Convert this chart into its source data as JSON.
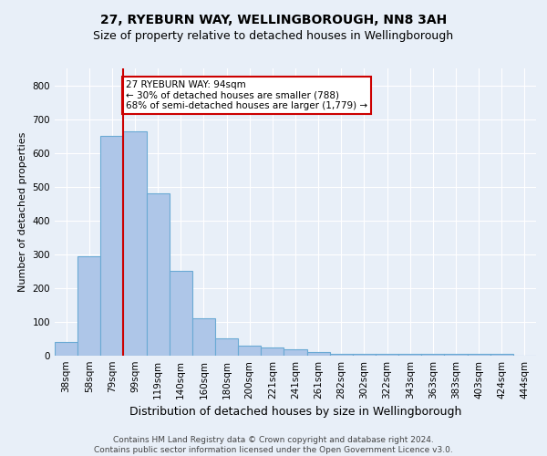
{
  "title1": "27, RYEBURN WAY, WELLINGBOROUGH, NN8 3AH",
  "title2": "Size of property relative to detached houses in Wellingborough",
  "xlabel": "Distribution of detached houses by size in Wellingborough",
  "ylabel": "Number of detached properties",
  "footer_line1": "Contains HM Land Registry data © Crown copyright and database right 2024.",
  "footer_line2": "Contains public sector information licensed under the Open Government Licence v3.0.",
  "categories": [
    "38sqm",
    "58sqm",
    "79sqm",
    "99sqm",
    "119sqm",
    "140sqm",
    "160sqm",
    "180sqm",
    "200sqm",
    "221sqm",
    "241sqm",
    "261sqm",
    "282sqm",
    "302sqm",
    "322sqm",
    "343sqm",
    "363sqm",
    "383sqm",
    "403sqm",
    "424sqm",
    "444sqm"
  ],
  "bar_heights": [
    40,
    295,
    650,
    665,
    480,
    250,
    110,
    50,
    30,
    25,
    20,
    10,
    5,
    5,
    5,
    5,
    5,
    5,
    5,
    5,
    0
  ],
  "bar_color": "#aec6e8",
  "bar_edge_color": "#6aaad4",
  "vline_color": "#cc0000",
  "annotation_text": "27 RYEBURN WAY: 94sqm\n← 30% of detached houses are smaller (788)\n68% of semi-detached houses are larger (1,779) →",
  "annotation_box_facecolor": "#ffffff",
  "annotation_box_edgecolor": "#cc0000",
  "ylim": [
    0,
    850
  ],
  "yticks": [
    0,
    100,
    200,
    300,
    400,
    500,
    600,
    700,
    800
  ],
  "background_color": "#e8eff8",
  "plot_bg_color": "#e8eff8",
  "grid_color": "#ffffff",
  "title1_fontsize": 10,
  "title2_fontsize": 9,
  "xlabel_fontsize": 9,
  "ylabel_fontsize": 8,
  "tick_fontsize": 7.5,
  "annotation_fontsize": 7.5,
  "footer_fontsize": 6.5
}
